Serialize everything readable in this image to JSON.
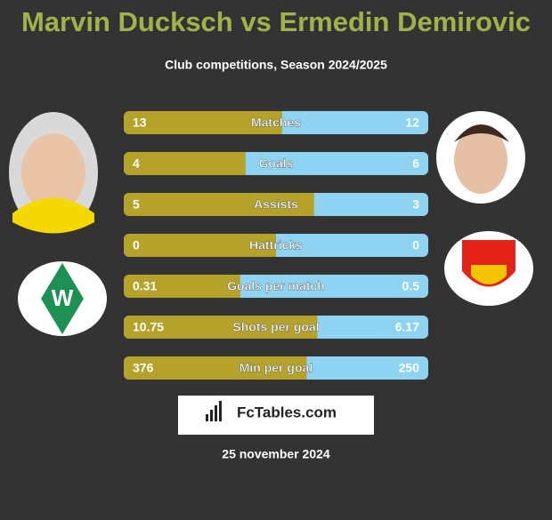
{
  "header": {
    "title": "Marvin Ducksch vs Ermedin Demirovic",
    "subtitle": "Club competitions, Season 2024/2025"
  },
  "rows": [
    {
      "label": "Matches",
      "left": 13,
      "right": 12
    },
    {
      "label": "Goals",
      "left": 4,
      "right": 6
    },
    {
      "label": "Assists",
      "left": 5,
      "right": 3
    },
    {
      "label": "Hattricks",
      "left": 0,
      "right": 0
    },
    {
      "label": "Goals per match",
      "left": 0.31,
      "right": 0.5
    },
    {
      "label": "Shots per goal",
      "left": 10.75,
      "right": 6.17
    },
    {
      "label": "Min per goal",
      "left": 376,
      "right": 250
    }
  ],
  "logo": "FcTables.com",
  "date": "25 november 2024"
}
